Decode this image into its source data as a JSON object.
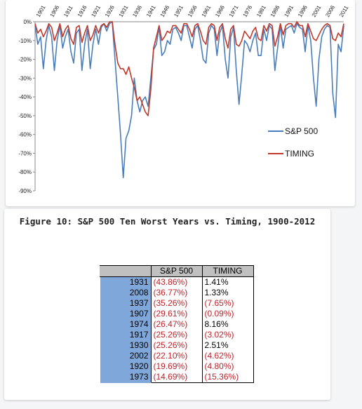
{
  "colors": {
    "sp500": "#4a7ebb",
    "timing": "#c0392b",
    "year_column": "#7fa7d9",
    "header_fill": "#c0c0c0",
    "negative_text": "#c0222a"
  },
  "chart_data": {
    "type": "line",
    "title": "",
    "xlabel": "",
    "ylabel": "",
    "x_tick_labels": [
      "1901",
      "1906",
      "1911",
      "1916",
      "1921",
      "1926",
      "1931",
      "1936",
      "1941",
      "1946",
      "1951",
      "1956",
      "1961",
      "1966",
      "1971",
      "1976",
      "1981",
      "1986",
      "1991",
      "1996",
      "2001",
      "2006",
      "2011"
    ],
    "xlim": [
      1900,
      2012
    ],
    "y_tick_labels": [
      "0%",
      "-10%",
      "-20%",
      "-30%",
      "-40%",
      "-50%",
      "-60%",
      "-70%",
      "-80%",
      "-90%"
    ],
    "ylim": [
      -90,
      0
    ],
    "grid": false,
    "legend_position": "lower-right",
    "series": [
      {
        "name": "S&P 500",
        "x": [
          1900,
          1901,
          1902,
          1903,
          1904,
          1905,
          1906,
          1907,
          1908,
          1909,
          1910,
          1911,
          1912,
          1913,
          1914,
          1915,
          1916,
          1917,
          1918,
          1919,
          1920,
          1921,
          1922,
          1923,
          1924,
          1925,
          1926,
          1927,
          1928,
          1929,
          1930,
          1931,
          1932,
          1933,
          1934,
          1935,
          1936,
          1937,
          1938,
          1939,
          1940,
          1941,
          1942,
          1943,
          1944,
          1945,
          1946,
          1947,
          1948,
          1949,
          1950,
          1951,
          1952,
          1953,
          1954,
          1955,
          1956,
          1957,
          1958,
          1959,
          1960,
          1961,
          1962,
          1963,
          1964,
          1965,
          1966,
          1967,
          1968,
          1969,
          1970,
          1971,
          1972,
          1973,
          1974,
          1975,
          1976,
          1977,
          1978,
          1979,
          1980,
          1981,
          1982,
          1983,
          1984,
          1985,
          1986,
          1987,
          1988,
          1989,
          1990,
          1991,
          1992,
          1993,
          1994,
          1995,
          1996,
          1997,
          1998,
          1999,
          2000,
          2001,
          2002,
          2003,
          2004,
          2005,
          2006,
          2007,
          2008,
          2009,
          2010,
          2011,
          2012
        ],
        "y": [
          -2,
          -12,
          -8,
          -25,
          -10,
          -2,
          -8,
          -26,
          -10,
          -2,
          -14,
          -8,
          -4,
          -16,
          -22,
          -6,
          -4,
          -26,
          -12,
          -4,
          -25,
          -12,
          -4,
          -12,
          -3,
          -1,
          -5,
          -1,
          0,
          -20,
          -40,
          -60,
          -83,
          -62,
          -58,
          -50,
          -30,
          -42,
          -48,
          -42,
          -40,
          -45,
          -30,
          -15,
          -12,
          -3,
          -18,
          -16,
          -10,
          -12,
          -4,
          -3,
          -6,
          -10,
          -2,
          -2,
          -8,
          -14,
          -4,
          -2,
          -10,
          -20,
          -22,
          -6,
          -2,
          -4,
          -18,
          -6,
          -2,
          -20,
          -30,
          -8,
          -3,
          -26,
          -44,
          -28,
          -10,
          -12,
          -16,
          -10,
          -6,
          -18,
          -18,
          -4,
          -10,
          -2,
          -4,
          -26,
          -14,
          -2,
          -14,
          -4,
          -3,
          -2,
          -6,
          -1,
          -3,
          -4,
          -16,
          -2,
          -10,
          -30,
          -45,
          -20,
          -8,
          -4,
          -2,
          -3,
          -38,
          -51,
          -12,
          -16,
          -2
        ]
      },
      {
        "name": "TIMING",
        "x": [
          1900,
          1901,
          1902,
          1903,
          1904,
          1905,
          1906,
          1907,
          1908,
          1909,
          1910,
          1911,
          1912,
          1913,
          1914,
          1915,
          1916,
          1917,
          1918,
          1919,
          1920,
          1921,
          1922,
          1923,
          1924,
          1925,
          1926,
          1927,
          1928,
          1929,
          1930,
          1931,
          1932,
          1933,
          1934,
          1935,
          1936,
          1937,
          1938,
          1939,
          1940,
          1941,
          1942,
          1943,
          1944,
          1945,
          1946,
          1947,
          1948,
          1949,
          1950,
          1951,
          1952,
          1953,
          1954,
          1955,
          1956,
          1957,
          1958,
          1959,
          1960,
          1961,
          1962,
          1963,
          1964,
          1965,
          1966,
          1967,
          1968,
          1969,
          1970,
          1971,
          1972,
          1973,
          1974,
          1975,
          1976,
          1977,
          1978,
          1979,
          1980,
          1981,
          1982,
          1983,
          1984,
          1985,
          1986,
          1987,
          1988,
          1989,
          1990,
          1991,
          1992,
          1993,
          1994,
          1995,
          1996,
          1997,
          1998,
          1999,
          2000,
          2001,
          2002,
          2003,
          2004,
          2005,
          2006,
          2007,
          2008,
          2009,
          2010,
          2011,
          2012
        ],
        "y": [
          -1,
          -6,
          -4,
          -8,
          -5,
          -1,
          -3,
          -10,
          -6,
          -1,
          -8,
          -4,
          -2,
          -9,
          -12,
          -3,
          -2,
          -11,
          -6,
          -2,
          -10,
          -7,
          -2,
          -6,
          -2,
          -1,
          -3,
          0,
          0,
          -12,
          -22,
          -25,
          -25,
          -28,
          -24,
          -30,
          -35,
          -42,
          -40,
          -44,
          -48,
          -50,
          -36,
          -14,
          -8,
          -2,
          -10,
          -8,
          -5,
          -6,
          -2,
          -2,
          -4,
          -6,
          -1,
          -1,
          -4,
          -8,
          -2,
          -1,
          -5,
          -10,
          -12,
          -3,
          -1,
          -2,
          -10,
          -3,
          -1,
          -9,
          -14,
          -4,
          -2,
          -12,
          -13,
          -10,
          -5,
          -7,
          -9,
          -5,
          -3,
          -9,
          -10,
          -2,
          -5,
          -1,
          -2,
          -13,
          -8,
          -1,
          -7,
          -2,
          -1,
          -1,
          -3,
          0,
          -2,
          -2,
          -8,
          -1,
          -5,
          -9,
          -10,
          -7,
          -4,
          -2,
          -1,
          -2,
          -9,
          -10,
          -6,
          -8,
          -1
        ]
      }
    ]
  },
  "table": {
    "title": "Figure 10: S&P 500 Ten Worst Years vs. Timing, 1900-2012",
    "headers": {
      "year": "",
      "sp500": "S&P  500",
      "timing": "TIMING"
    },
    "rows": [
      {
        "year": "1931",
        "sp500": "(43.86%)",
        "timing": "1.41%",
        "timing_negative": false
      },
      {
        "year": "2008",
        "sp500": "(36.77%)",
        "timing": "1.33%",
        "timing_negative": false
      },
      {
        "year": "1937",
        "sp500": "(35.26%)",
        "timing": "(7.65%)",
        "timing_negative": true
      },
      {
        "year": "1907",
        "sp500": "(29.61%)",
        "timing": "(0.09%)",
        "timing_negative": true
      },
      {
        "year": "1974",
        "sp500": "(26.47%)",
        "timing": "8.16%",
        "timing_negative": false
      },
      {
        "year": "1917",
        "sp500": "(25.26%)",
        "timing": "(3.02%)",
        "timing_negative": true
      },
      {
        "year": "1930",
        "sp500": "(25.26%)",
        "timing": "2.51%",
        "timing_negative": false
      },
      {
        "year": "2002",
        "sp500": "(22.10%)",
        "timing": "(4.62%)",
        "timing_negative": true
      },
      {
        "year": "1920",
        "sp500": "(19.69%)",
        "timing": "(4.80%)",
        "timing_negative": true
      },
      {
        "year": "1973",
        "sp500": "(14.69%)",
        "timing": "(15.36%)",
        "timing_negative": true
      }
    ]
  }
}
